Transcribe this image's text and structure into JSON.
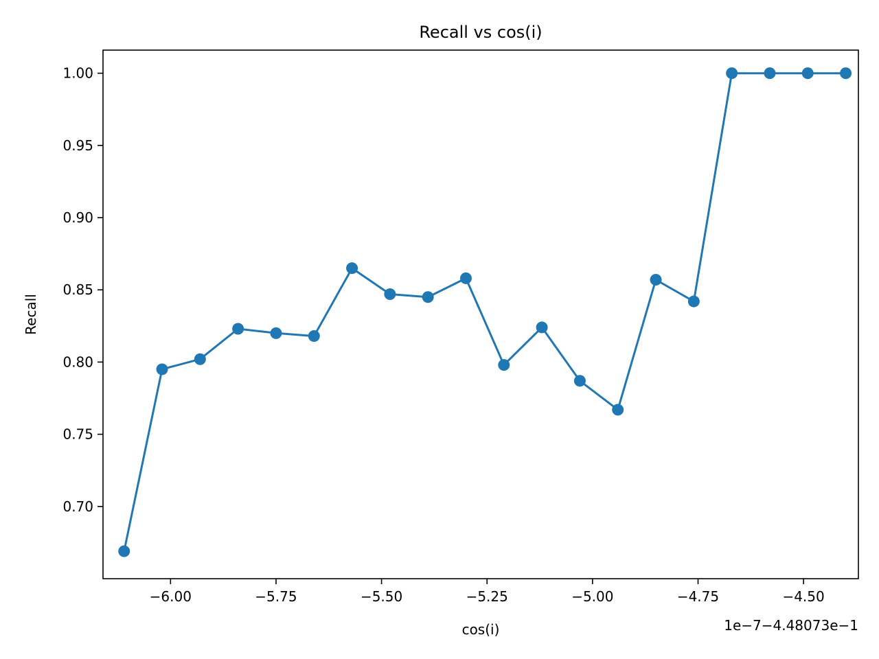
{
  "chart_data": {
    "type": "line",
    "title": "Recall vs cos(i)",
    "xlabel": "cos(i)",
    "ylabel": "Recall",
    "x_offset_text": "1e−7−4.48073e−1",
    "xlim": [
      -6.16,
      -4.37
    ],
    "ylim": [
      0.65,
      1.016
    ],
    "x_ticks": [
      -6.0,
      -5.75,
      -5.5,
      -5.25,
      -5.0,
      -4.75,
      -4.5
    ],
    "x_tick_labels": [
      "−6.00",
      "−5.75",
      "−5.50",
      "−5.25",
      "−5.00",
      "−4.75",
      "−4.50"
    ],
    "y_ticks": [
      0.7,
      0.75,
      0.8,
      0.85,
      0.9,
      0.95,
      1.0
    ],
    "y_tick_labels": [
      "0.70",
      "0.75",
      "0.80",
      "0.85",
      "0.90",
      "0.95",
      "1.00"
    ],
    "grid": false,
    "line_color": "#1f77b4",
    "series": [
      {
        "x": [
          -6.11,
          -6.02,
          -5.93,
          -5.84,
          -5.75,
          -5.66,
          -5.57,
          -5.48,
          -5.39,
          -5.3,
          -5.21,
          -5.12,
          -5.03,
          -4.94,
          -4.85,
          -4.76,
          -4.67,
          -4.58,
          -4.49,
          -4.4
        ],
        "y": [
          0.669,
          0.795,
          0.802,
          0.823,
          0.82,
          0.818,
          0.865,
          0.847,
          0.845,
          0.858,
          0.798,
          0.824,
          0.787,
          0.767,
          0.857,
          0.842,
          1.0,
          1.0,
          1.0,
          1.0
        ]
      }
    ]
  }
}
